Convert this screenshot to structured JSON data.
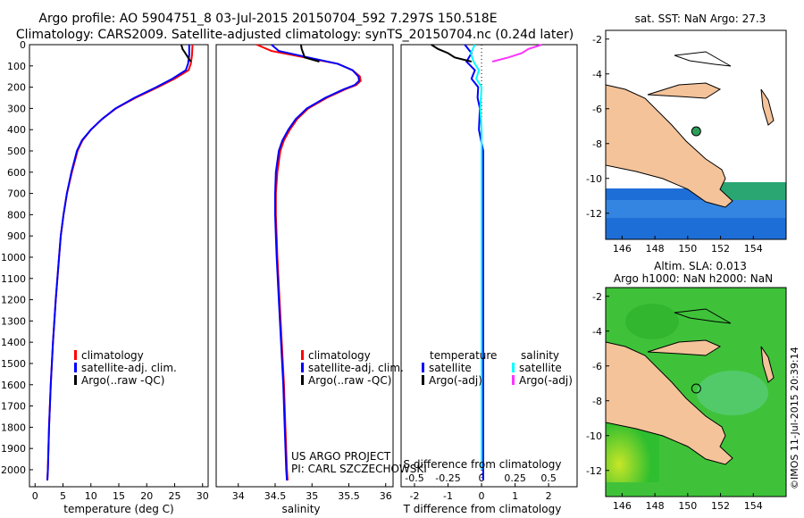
{
  "header": {
    "line1": "Argo profile: AO 5904751_8 03-Jul-2015 20150704_592 7.297S 150.518E",
    "line2": "Climatology: CARS2009. Satellite-adjusted climatology: synTS_20150704.nc (0.24d later)"
  },
  "colors": {
    "climatology": "#ff0000",
    "satellite": "#0000ff",
    "argo": "#000000",
    "sal_satellite": "#00ffff",
    "sal_argo": "#ff33ff",
    "land": "#f4c39a",
    "map_water_top": "#ffffff"
  },
  "chart_data": [
    {
      "type": "line",
      "name": "temperature",
      "xlabel": "temperature (deg C)",
      "ylabel": "",
      "xlim": [
        -1,
        31
      ],
      "ylim": [
        2080,
        0
      ],
      "xticks": [
        "0",
        "5",
        "10",
        "15",
        "20",
        "25",
        "30"
      ],
      "yticks": [
        "0",
        "100",
        "200",
        "300",
        "400",
        "500",
        "600",
        "700",
        "800",
        "900",
        "1000",
        "1100",
        "1200",
        "1300",
        "1400",
        "1500",
        "1600",
        "1700",
        "1800",
        "1900",
        "2000"
      ],
      "legend": [
        "climatology",
        "satellite-adj. clim.",
        "Argo(..raw -QC)"
      ],
      "series": [
        {
          "name": "climatology",
          "depth": [
            0,
            50,
            90,
            120,
            160,
            200,
            250,
            300,
            350,
            400,
            450,
            500,
            600,
            700,
            800,
            900,
            1000,
            1200,
            1400,
            1600,
            1800,
            2000,
            2050
          ],
          "values": [
            28.2,
            28.1,
            27.9,
            27.5,
            25,
            22,
            18,
            14.5,
            12,
            10,
            8.5,
            7.6,
            6.6,
            5.7,
            5.1,
            4.6,
            4.3,
            3.7,
            3.2,
            2.8,
            2.5,
            2.3,
            2.2
          ]
        },
        {
          "name": "satellite-adj. clim.",
          "depth": [
            0,
            50,
            90,
            120,
            160,
            200,
            250,
            300,
            350,
            400,
            450,
            500,
            600,
            700,
            800,
            900,
            1000,
            1200,
            1400,
            1600,
            1800,
            2000,
            2050
          ],
          "values": [
            27.6,
            27.6,
            27.4,
            27,
            24.6,
            21.7,
            17.8,
            14.4,
            12,
            10,
            8.4,
            7.5,
            6.5,
            5.7,
            5.1,
            4.6,
            4.3,
            3.7,
            3.2,
            2.8,
            2.5,
            2.3,
            2.2
          ]
        },
        {
          "name": "Argo(..raw -QC)",
          "depth": [
            0,
            20,
            40,
            60,
            80
          ],
          "values": [
            26.2,
            26.4,
            26.9,
            27.4,
            27.9
          ]
        }
      ]
    },
    {
      "type": "line",
      "name": "salinity",
      "xlabel": "salinity",
      "xlim": [
        33.7,
        36.1
      ],
      "ylim": [
        2080,
        0
      ],
      "xticks": [
        "34",
        "34.5",
        "35",
        "35.5",
        "36"
      ],
      "legend": [
        "climatology",
        "satellite-adj. clim.",
        "Argo(..raw -QC)"
      ],
      "series": [
        {
          "name": "climatology",
          "depth": [
            0,
            30,
            60,
            90,
            120,
            150,
            170,
            190,
            210,
            250,
            300,
            350,
            400,
            450,
            500,
            600,
            700,
            800,
            900,
            1000,
            1200,
            1400,
            1600,
            1800,
            2000,
            2050
          ],
          "values": [
            34.25,
            34.45,
            34.9,
            35.35,
            35.55,
            35.65,
            35.66,
            35.6,
            35.45,
            35.2,
            34.95,
            34.8,
            34.7,
            34.62,
            34.57,
            34.53,
            34.51,
            34.51,
            34.52,
            34.53,
            34.56,
            34.59,
            34.62,
            34.64,
            34.66,
            34.67
          ]
        },
        {
          "name": "satellite-adj. clim.",
          "depth": [
            0,
            30,
            60,
            90,
            120,
            150,
            170,
            190,
            210,
            250,
            300,
            350,
            400,
            450,
            500,
            600,
            700,
            800,
            900,
            1000,
            1200,
            1400,
            1600,
            1800,
            2000,
            2050
          ],
          "values": [
            34.45,
            34.55,
            34.95,
            35.35,
            35.55,
            35.63,
            35.64,
            35.58,
            35.43,
            35.18,
            34.93,
            34.78,
            34.68,
            34.6,
            34.55,
            34.51,
            34.5,
            34.5,
            34.51,
            34.52,
            34.55,
            34.58,
            34.61,
            34.63,
            34.65,
            34.66
          ]
        },
        {
          "name": "Argo(..raw -QC)",
          "depth": [
            0,
            20,
            40,
            60,
            80
          ],
          "values": [
            34.85,
            34.86,
            34.88,
            34.9,
            35.1
          ]
        }
      ]
    },
    {
      "type": "line",
      "name": "difference",
      "xlabel_top": "S difference from climatology",
      "xlabel_bottom": "T difference from climatology",
      "xlim": [
        -2.4,
        2.85
      ],
      "ylim": [
        2080,
        0
      ],
      "xticks_top": [
        "-0.5",
        "-0.25",
        "0",
        "0.25",
        "0.5"
      ],
      "xticks_bottom": [
        "-2",
        "-1",
        "0",
        "1",
        "2"
      ],
      "legend": {
        "temperature_title": "temperature",
        "salinity_title": "salinity",
        "items": [
          "satellite",
          "Argo(-adj)",
          "satellite",
          "Argo(-adj)"
        ]
      },
      "series": [
        {
          "name": "temperature satellite",
          "depth": [
            0,
            40,
            80,
            120,
            160,
            200,
            250,
            300,
            400,
            500,
            700,
            1000,
            1500,
            2000,
            2050
          ],
          "values": [
            -0.5,
            -0.3,
            -0.45,
            -0.2,
            -0.3,
            -0.1,
            -0.12,
            -0.05,
            -0.08,
            0.05,
            0.05,
            0.05,
            0.05,
            0.05,
            0.05
          ]
        },
        {
          "name": "temperature Argo(-adj)",
          "depth": [
            0,
            20,
            40,
            60,
            80
          ],
          "values": [
            -1.5,
            -1.3,
            -1.0,
            -0.8,
            -0.3
          ]
        },
        {
          "name": "salinity satellite",
          "depth": [
            0,
            40,
            80,
            120,
            160,
            200,
            300,
            400,
            600,
            800,
            1000,
            2000
          ],
          "values": [
            -0.05,
            -0.08,
            -0.06,
            -0.02,
            -0.04,
            0.0,
            -0.01,
            0.0,
            0.0,
            0.0,
            0.0,
            0.0
          ]
        },
        {
          "name": "salinity Argo(-adj)",
          "depth": [
            0,
            20,
            40,
            60,
            80
          ],
          "values": [
            0.45,
            0.35,
            0.3,
            0.2,
            0.08
          ]
        }
      ]
    },
    {
      "type": "heatmap",
      "name": "sst-map",
      "title": "sat. SST: NaN Argo: 27.3",
      "xticks": [
        "146",
        "148",
        "150",
        "152",
        "154"
      ],
      "yticks": [
        "-2",
        "-4",
        "-6",
        "-8",
        "-10",
        "-12"
      ],
      "xlim": [
        145,
        156
      ],
      "ylim": [
        -13.5,
        -1.5
      ],
      "argo_position": {
        "lon": 150.518,
        "lat": -7.297
      }
    },
    {
      "type": "heatmap",
      "name": "sla-map",
      "title_line1": "Altim. SLA: 0.013",
      "title_line2": "Argo h1000: NaN h2000: NaN",
      "xticks": [
        "146",
        "148",
        "150",
        "152",
        "154"
      ],
      "yticks": [
        "-2",
        "-4",
        "-6",
        "-8",
        "-10",
        "-12"
      ],
      "xlim": [
        145,
        156
      ],
      "ylim": [
        -13.5,
        -1.5
      ],
      "argo_position": {
        "lon": 150.518,
        "lat": -7.297
      }
    }
  ],
  "credits": {
    "project": "US ARGO PROJECT",
    "pi": "PI: CARL SZCZECHOWSKI",
    "stamp": "©IMOS 11-Jul-2015 20:39:14"
  }
}
